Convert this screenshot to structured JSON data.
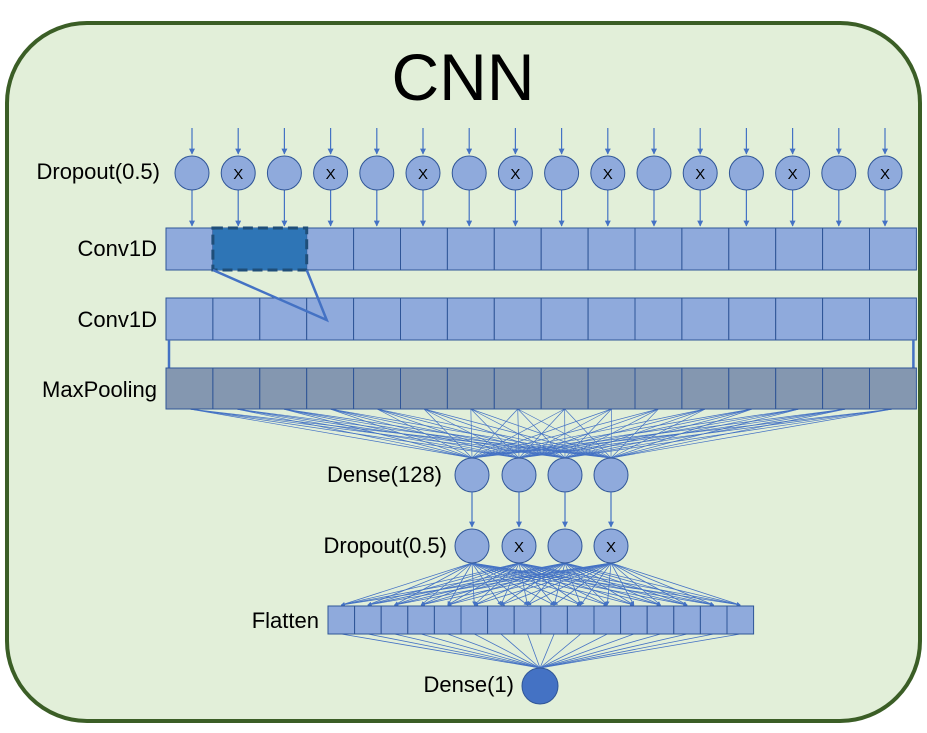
{
  "title": "CNN",
  "layers": {
    "input_dropout": {
      "label": "Dropout(0.5)",
      "units": 16,
      "dropped_mark": "X",
      "dropped": [
        1,
        3,
        5,
        7,
        9,
        11,
        13,
        15
      ]
    },
    "conv1": {
      "label": "Conv1D",
      "cells": 16,
      "kernel_highlight": [
        1,
        2
      ]
    },
    "conv2": {
      "label": "Conv1D",
      "cells": 16
    },
    "maxpool": {
      "label": "MaxPooling",
      "cells": 16
    },
    "dense128": {
      "label": "Dense(128)",
      "units": 4
    },
    "dense_dropout": {
      "label": "Dropout(0.5)",
      "units": 4,
      "dropped_mark": "X",
      "dropped": [
        1,
        3
      ]
    },
    "flatten": {
      "label": "Flatten",
      "cells": 16
    },
    "output": {
      "label": "Dense(1)",
      "units": 1
    }
  },
  "colors": {
    "panel_fill": "#e2efd9",
    "panel_border": "#3b5e26",
    "neuron": "#8faadc",
    "neuron_stroke": "#2f5597",
    "conv_cell": "#8faadc",
    "conv_stroke": "#2f5597",
    "kernel_fill": "#2e75b6",
    "pool_cell": "#8497b0",
    "arrow": "#4472c4",
    "output_neuron": "#4472c4"
  }
}
